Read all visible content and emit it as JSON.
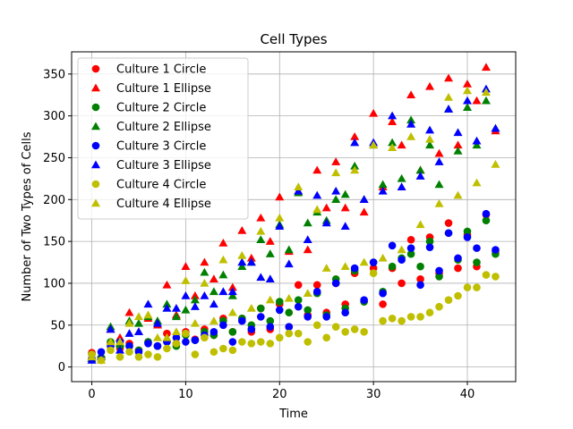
{
  "chart_data": {
    "type": "scatter",
    "title": "Cell Types",
    "xlabel": "Time",
    "ylabel": "Number of Two Types of Cells",
    "xlim": [
      -2.15,
      45.15
    ],
    "ylim": [
      -17.5,
      376.5
    ],
    "xticks": [
      0,
      10,
      20,
      30,
      40
    ],
    "yticks": [
      0,
      50,
      100,
      150,
      200,
      250,
      300,
      350
    ],
    "grid": true,
    "legend_position": "upper left",
    "x": [
      0,
      1,
      2,
      3,
      4,
      5,
      6,
      7,
      8,
      9,
      10,
      11,
      12,
      13,
      14,
      15,
      16,
      17,
      18,
      19,
      20,
      21,
      22,
      23,
      24,
      25,
      26,
      27,
      28,
      29,
      30,
      31,
      32,
      33,
      34,
      35,
      36,
      37,
      38,
      39,
      40,
      41,
      42,
      43
    ],
    "series": [
      {
        "name": "Culture 1 Circle",
        "marker": "circle",
        "color": "#ff0000",
        "values": [
          17,
          10,
          28,
          22,
          28,
          20,
          30,
          25,
          40,
          28,
          42,
          33,
          45,
          38,
          58,
          42,
          58,
          42,
          70,
          45,
          75,
          48,
          98,
          62,
          98,
          65,
          100,
          75,
          112,
          78,
          118,
          75,
          118,
          100,
          152,
          105,
          155,
          112,
          172,
          118,
          158,
          120,
          182,
          138
        ]
      },
      {
        "name": "Culture 1 Ellipse",
        "marker": "triangle",
        "color": "#ff0000",
        "values": [
          10,
          15,
          45,
          35,
          65,
          42,
          58,
          50,
          98,
          62,
          120,
          85,
          125,
          105,
          148,
          95,
          163,
          130,
          178,
          150,
          203,
          138,
          210,
          140,
          235,
          190,
          245,
          190,
          275,
          185,
          303,
          215,
          293,
          265,
          325,
          235,
          335,
          255,
          345,
          265,
          338,
          318,
          358,
          282
        ]
      },
      {
        "name": "Culture 2 Circle",
        "marker": "circle",
        "color": "#008000",
        "values": [
          15,
          10,
          30,
          25,
          25,
          20,
          30,
          25,
          30,
          25,
          38,
          32,
          42,
          38,
          55,
          42,
          58,
          50,
          70,
          55,
          78,
          65,
          80,
          68,
          88,
          62,
          105,
          70,
          115,
          78,
          125,
          90,
          120,
          130,
          135,
          120,
          150,
          108,
          160,
          128,
          162,
          125,
          175,
          135
        ]
      },
      {
        "name": "Culture 2 Ellipse",
        "marker": "triangle",
        "color": "#008000",
        "values": [
          10,
          15,
          48,
          28,
          55,
          52,
          60,
          55,
          75,
          60,
          68,
          80,
          113,
          90,
          110,
          85,
          120,
          125,
          152,
          135,
          170,
          140,
          208,
          172,
          185,
          175,
          200,
          206,
          240,
          200,
          265,
          218,
          268,
          225,
          295,
          235,
          265,
          218,
          308,
          258,
          310,
          265,
          318,
          285
        ]
      },
      {
        "name": "Culture 3 Circle",
        "marker": "circle",
        "color": "#0000ff",
        "values": [
          10,
          18,
          25,
          30,
          25,
          18,
          28,
          25,
          30,
          35,
          30,
          32,
          38,
          42,
          50,
          30,
          55,
          45,
          60,
          48,
          68,
          48,
          72,
          60,
          90,
          60,
          100,
          65,
          118,
          80,
          125,
          88,
          145,
          128,
          142,
          98,
          143,
          115,
          160,
          130,
          155,
          142,
          183,
          140
        ]
      },
      {
        "name": "Culture 3 Ellipse",
        "marker": "triangle",
        "color": "#0000ff",
        "values": [
          8,
          12,
          45,
          20,
          40,
          42,
          75,
          52,
          70,
          70,
          85,
          72,
          85,
          75,
          90,
          90,
          125,
          125,
          107,
          105,
          168,
          123,
          210,
          152,
          205,
          172,
          210,
          168,
          268,
          200,
          268,
          210,
          300,
          215,
          290,
          228,
          283,
          245,
          308,
          280,
          318,
          270,
          332,
          285
        ]
      },
      {
        "name": "Culture 4 Circle",
        "marker": "circle",
        "color": "#bfbf00",
        "values": [
          15,
          8,
          20,
          12,
          18,
          12,
          15,
          12,
          22,
          28,
          40,
          15,
          35,
          18,
          22,
          20,
          30,
          28,
          30,
          28,
          35,
          40,
          40,
          30,
          50,
          35,
          48,
          42,
          45,
          42,
          112,
          55,
          58,
          55,
          60,
          60,
          65,
          72,
          80,
          85,
          95,
          95,
          110,
          108
        ]
      },
      {
        "name": "Culture 4 Ellipse",
        "marker": "triangle",
        "color": "#bfbf00",
        "values": [
          12,
          8,
          30,
          30,
          52,
          60,
          62,
          35,
          35,
          42,
          103,
          52,
          100,
          55,
          128,
          65,
          133,
          70,
          162,
          80,
          178,
          82,
          215,
          88,
          188,
          118,
          232,
          120,
          235,
          125,
          265,
          130,
          262,
          140,
          275,
          170,
          272,
          195,
          322,
          205,
          330,
          220,
          328,
          242
        ]
      }
    ]
  }
}
